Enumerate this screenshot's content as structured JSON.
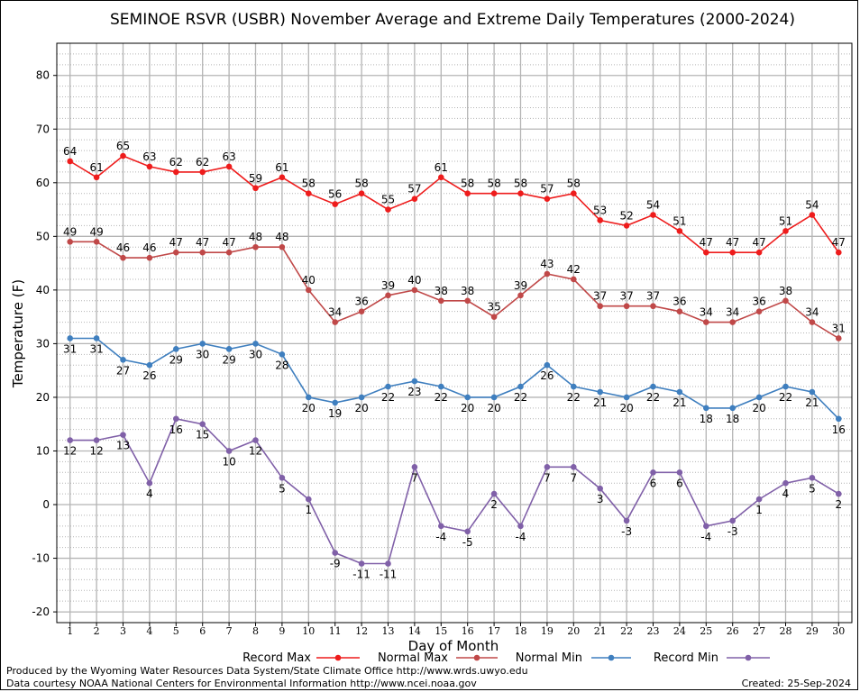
{
  "chart_data": {
    "type": "line",
    "title": "SEMINOE RSVR (USBR) November Average and Extreme Daily Temperatures (2000-2024)",
    "xlabel": "Day of Month",
    "ylabel": "Temperature (F)",
    "x": [
      1,
      2,
      3,
      4,
      5,
      6,
      7,
      8,
      9,
      10,
      11,
      12,
      13,
      14,
      15,
      16,
      17,
      18,
      19,
      20,
      21,
      22,
      23,
      24,
      25,
      26,
      27,
      28,
      29,
      30
    ],
    "xlim": [
      0.5,
      30.5
    ],
    "ylim": [
      -22,
      86
    ],
    "yticks": [
      -20,
      -10,
      0,
      10,
      20,
      30,
      40,
      50,
      60,
      70,
      80
    ],
    "grid": true,
    "legend_position": "bottom",
    "series": [
      {
        "name": "Record Max",
        "color": "#ee1c1c",
        "label_position": "above",
        "values": [
          64,
          61,
          65,
          63,
          62,
          62,
          63,
          59,
          61,
          58,
          56,
          58,
          55,
          57,
          61,
          58,
          58,
          58,
          57,
          58,
          53,
          52,
          54,
          51,
          47,
          47,
          47,
          51,
          54,
          47
        ]
      },
      {
        "name": "Normal Max",
        "color": "#c04848",
        "label_position": "above",
        "values": [
          49,
          49,
          46,
          46,
          47,
          47,
          47,
          48,
          48,
          40,
          34,
          36,
          39,
          40,
          38,
          38,
          35,
          39,
          43,
          42,
          37,
          37,
          37,
          36,
          34,
          34,
          36,
          38,
          34,
          31
        ]
      },
      {
        "name": "Normal Min",
        "color": "#3f7fbf",
        "label_position": "below",
        "values": [
          31,
          31,
          27,
          26,
          29,
          30,
          29,
          30,
          28,
          20,
          19,
          20,
          22,
          23,
          22,
          20,
          20,
          22,
          26,
          22,
          21,
          20,
          22,
          21,
          18,
          18,
          20,
          22,
          21,
          16
        ]
      },
      {
        "name": "Record Min",
        "color": "#8060a8",
        "label_position": "below",
        "values": [
          12,
          12,
          13,
          4,
          16,
          15,
          10,
          12,
          5,
          1,
          -9,
          -11,
          -11,
          7,
          -4,
          -5,
          2,
          -4,
          7,
          7,
          3,
          -3,
          6,
          6,
          -4,
          -3,
          1,
          4,
          5,
          2
        ]
      }
    ]
  },
  "footer": {
    "produced_by": "Produced by the Wyoming Water Resources Data System/State Climate Office http://www.wrds.uwyo.edu",
    "data_courtesy": "Data courtesy NOAA National Centers for Environmental Information http://www.ncei.noaa.gov",
    "created": "Created:  25-Sep-2024"
  }
}
